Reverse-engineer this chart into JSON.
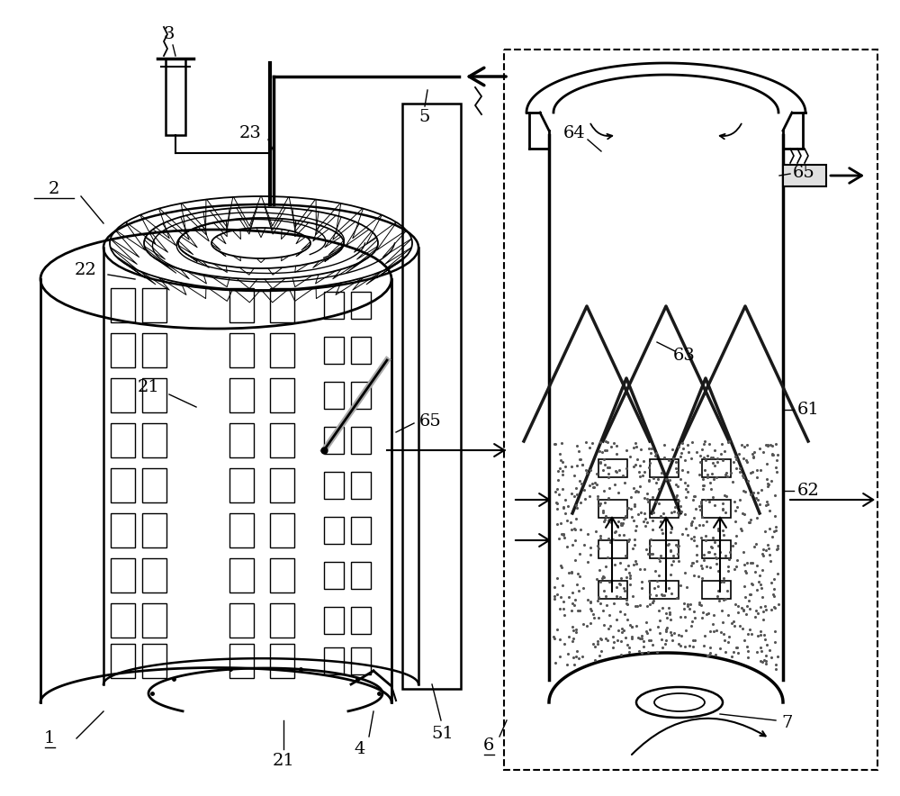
{
  "bg_color": "#ffffff",
  "lc": "#000000",
  "fig_w": 10.0,
  "fig_h": 8.84,
  "dpi": 100
}
